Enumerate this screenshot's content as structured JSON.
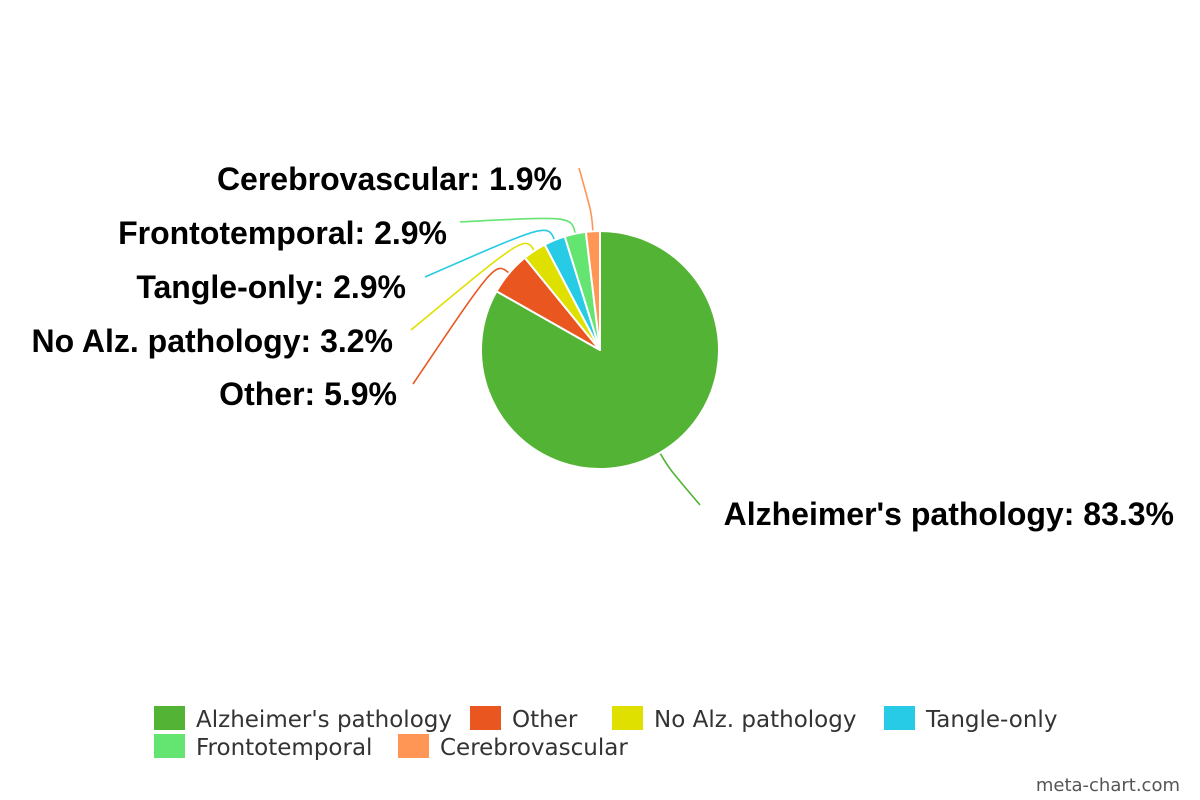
{
  "chart_data": {
    "type": "pie",
    "categories": [
      "Alzheimer's pathology",
      "Other",
      "No Alz. pathology",
      "Tangle-only",
      "Frontotemporal",
      "Cerebrovascular"
    ],
    "values": [
      83.3,
      5.9,
      3.2,
      2.9,
      2.9,
      1.9
    ],
    "colors": [
      "#52b335",
      "#ea5620",
      "#dfe000",
      "#27cbe5",
      "#64e572",
      "#ff9655"
    ],
    "data_labels": [
      "Alzheimer's pathology: 83.3%",
      "Other: 5.9%",
      "No Alz. pathology: 3.2%",
      "Tangle-only: 2.9%",
      "Frontotemporal: 2.9%",
      "Cerebrovascular: 1.9%"
    ],
    "legend": {
      "placement": "bottom-center",
      "entries": [
        "Alzheimer's pathology",
        "Other",
        "No Alz. pathology",
        "Tangle-only",
        "Frontotemporal",
        "Cerebrovascular"
      ]
    }
  },
  "watermark": "meta-chart.com"
}
